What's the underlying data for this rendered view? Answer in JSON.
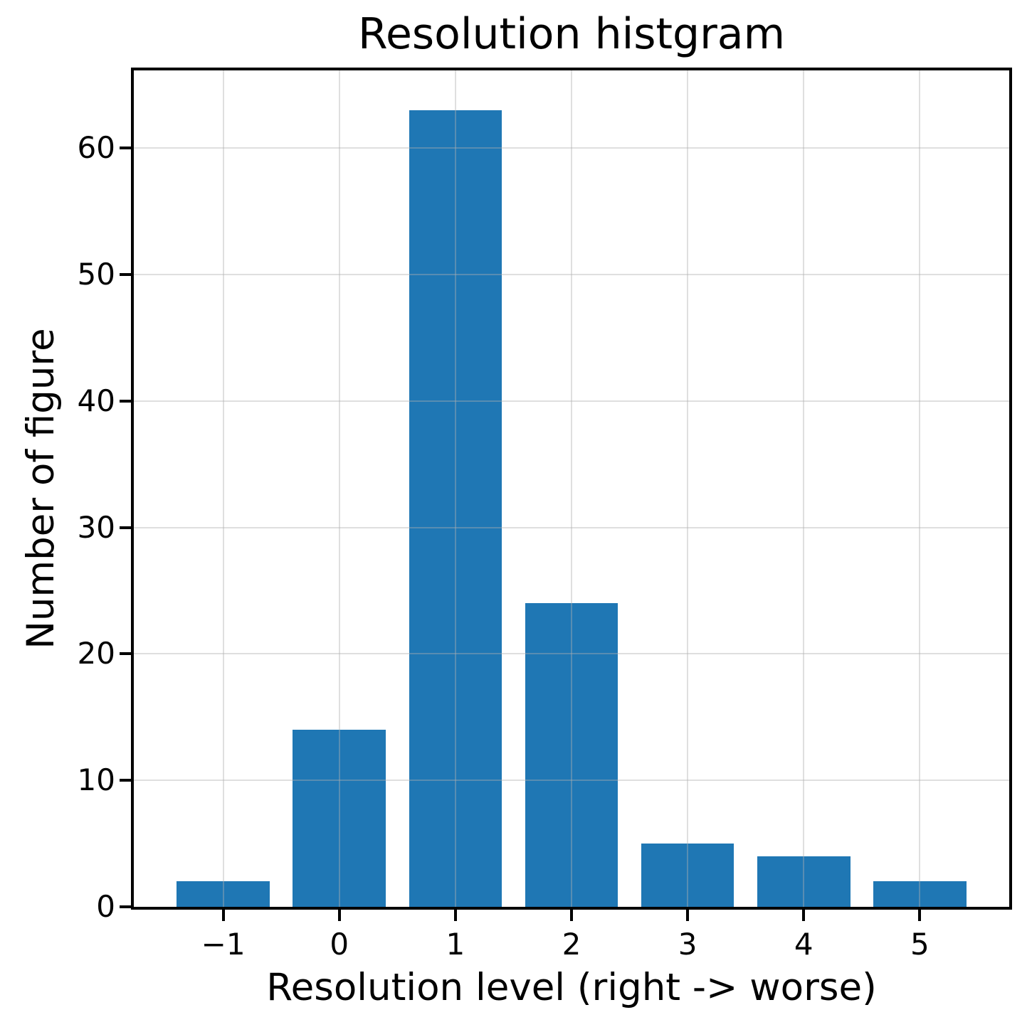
{
  "chart_data": {
    "type": "bar",
    "title": "Resolution histgram",
    "xlabel": "Resolution level (right -> worse)",
    "ylabel": "Number of figure",
    "categories": [
      -1,
      0,
      1,
      2,
      3,
      4,
      5
    ],
    "values": [
      2,
      14,
      63,
      24,
      5,
      4,
      2
    ],
    "xtick_labels": [
      "−1",
      "0",
      "1",
      "2",
      "3",
      "4",
      "5"
    ],
    "ytick_values": [
      0,
      10,
      20,
      30,
      40,
      50,
      60
    ],
    "ytick_labels": [
      "0",
      "10",
      "20",
      "30",
      "40",
      "50",
      "60"
    ],
    "xlim": [
      -1.77,
      5.77
    ],
    "ylim": [
      0,
      66.15
    ],
    "bar_width_units": 0.8,
    "bar_color": "#1f77b4",
    "grid": true,
    "grid_color_rgba": "rgba(176,176,176,0.4)",
    "spine_color": "#000000",
    "background_color": "#ffffff",
    "legend": null
  }
}
